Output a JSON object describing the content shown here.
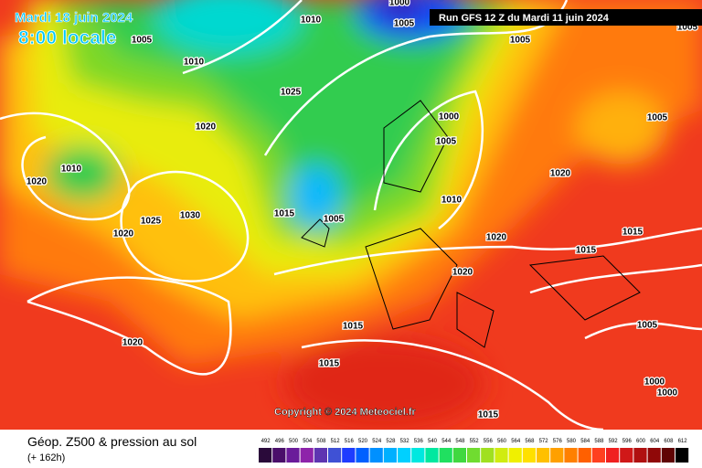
{
  "header": {
    "date": "Mardi 18 juin 2024",
    "time": "8:00 locale",
    "run": "Run GFS 12 Z du Mardi 11 juin 2024"
  },
  "copyright": "Copyright © 2024 Meteociel.fr",
  "legend": {
    "title": "Géop. Z500 & pression au sol",
    "lead": "(+ 162h)",
    "levels": [
      492,
      496,
      500,
      504,
      508,
      512,
      516,
      520,
      524,
      528,
      532,
      536,
      540,
      544,
      548,
      552,
      556,
      560,
      564,
      568,
      572,
      576,
      580,
      584,
      588,
      592,
      596,
      600,
      604,
      608,
      612
    ],
    "colors": [
      "#2a0a3a",
      "#4a0f6a",
      "#6a1b9a",
      "#8e24aa",
      "#5e35b1",
      "#3f51d5",
      "#1e3cff",
      "#0060ff",
      "#0090ff",
      "#00b0ff",
      "#00d0ff",
      "#00e8e0",
      "#00e8a0",
      "#20e060",
      "#40d840",
      "#70dc30",
      "#a0e020",
      "#d0ec10",
      "#f0f000",
      "#ffe000",
      "#ffc000",
      "#ffa000",
      "#ff8000",
      "#ff6000",
      "#ff4020",
      "#f02020",
      "#d01818",
      "#b01010",
      "#900808",
      "#600404",
      "#000000"
    ]
  },
  "isobar_labels": [
    1005,
    1010,
    1010,
    1025,
    1020,
    1010,
    1020,
    1025,
    1030,
    1020,
    1015,
    1005,
    1005,
    1005,
    1000,
    1005,
    1010,
    1020,
    1020,
    1020,
    1005,
    1015,
    1015,
    1015,
    1020,
    1015,
    1005,
    1000,
    1000,
    1015,
    1005,
    1000
  ]
}
